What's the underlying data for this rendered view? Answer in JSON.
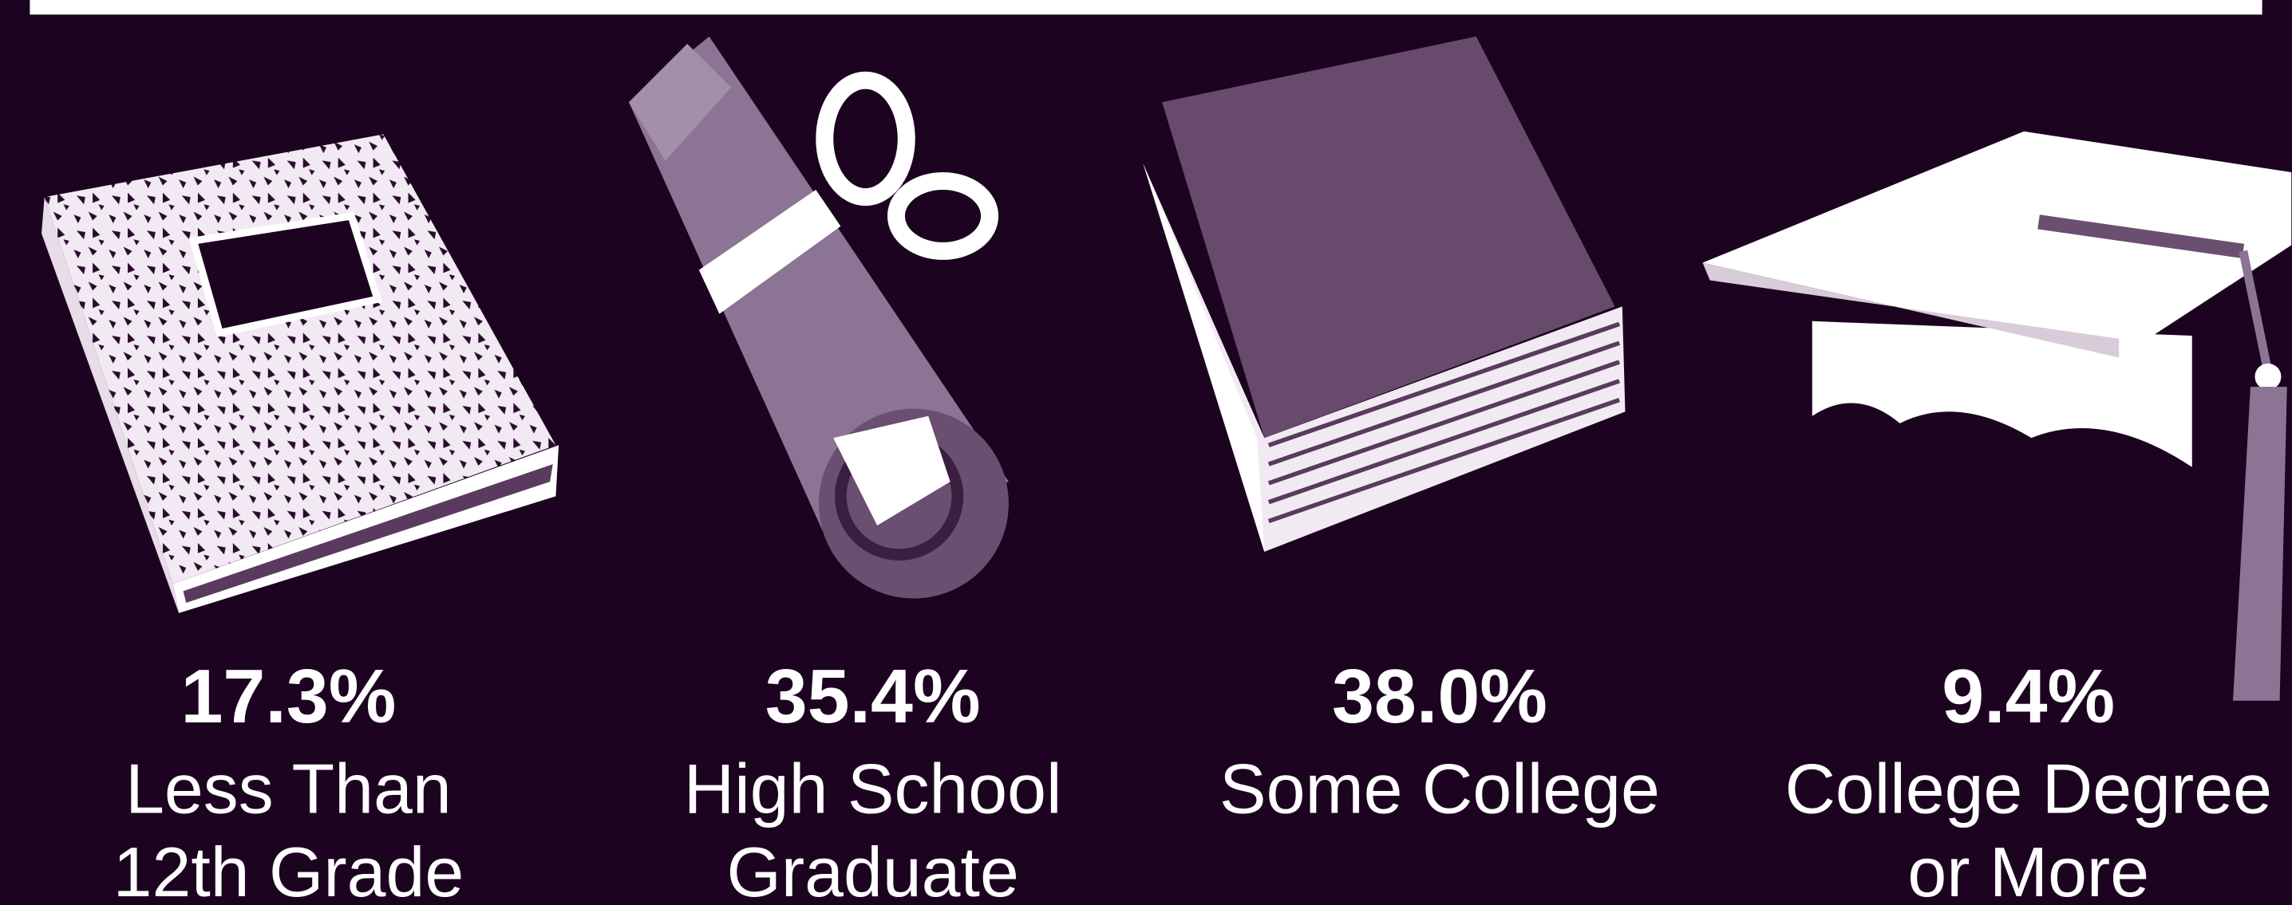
{
  "chart_data": {
    "type": "pictograph",
    "categories": [
      "Less Than\n12th Grade",
      "High School\nGraduate",
      "Some College",
      "College Degree\nor More"
    ],
    "values": [
      17.3,
      35.4,
      38.0,
      9.4
    ],
    "value_labels": [
      "17.3%",
      "35.4%",
      "38.0%",
      "9.4%"
    ]
  }
}
